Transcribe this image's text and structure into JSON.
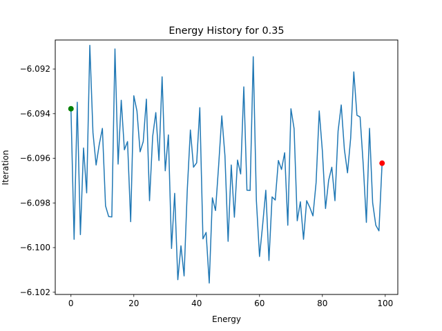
{
  "chart_data": {
    "type": "line",
    "title": "Energy History for 0.35",
    "xlabel": "Energy",
    "ylabel": "Iteration",
    "xlim": [
      -5,
      104
    ],
    "ylim": [
      -6.1021,
      -6.0907
    ],
    "grid": false,
    "x_ticks": [
      0,
      20,
      40,
      60,
      80,
      100
    ],
    "y_ticks": [
      -6.102,
      -6.1,
      -6.098,
      -6.096,
      -6.094,
      -6.092
    ],
    "x_tick_labels": [
      "0",
      "20",
      "40",
      "60",
      "80",
      "100"
    ],
    "y_tick_labels": [
      "−6.102",
      "−6.100",
      "−6.098",
      "−6.096",
      "−6.094",
      "−6.092"
    ],
    "line_color": "#1f77b4",
    "series": [
      {
        "values": [
          -6.09378,
          -6.09963,
          -6.09349,
          -6.09942,
          -6.09554,
          -6.09755,
          -6.09094,
          -6.09485,
          -6.0963,
          -6.09538,
          -6.09466,
          -6.09813,
          -6.09861,
          -6.09863,
          -6.0911,
          -6.09626,
          -6.0934,
          -6.09562,
          -6.09525,
          -6.09884,
          -6.0932,
          -6.09388,
          -6.09571,
          -6.09525,
          -6.09335,
          -6.0979,
          -6.09502,
          -6.09395,
          -6.0961,
          -6.09235,
          -6.09656,
          -6.09495,
          -6.10004,
          -6.09757,
          -6.10144,
          -6.09992,
          -6.10127,
          -6.09745,
          -6.09473,
          -6.0964,
          -6.0962,
          -6.09373,
          -6.09961,
          -6.09932,
          -6.10159,
          -6.09777,
          -6.09834,
          -6.09631,
          -6.0941,
          -6.09589,
          -6.09972,
          -6.0963,
          -6.09864,
          -6.09608,
          -6.0967,
          -6.0928,
          -6.09743,
          -6.09744,
          -6.09145,
          -6.09789,
          -6.1004,
          -6.09898,
          -6.09743,
          -6.10058,
          -6.09773,
          -6.09787,
          -6.0961,
          -6.0965,
          -6.09575,
          -6.099,
          -6.09378,
          -6.09467,
          -6.0988,
          -6.09795,
          -6.09963,
          -6.0979,
          -6.0982,
          -6.09858,
          -6.09709,
          -6.09388,
          -6.09568,
          -6.09825,
          -6.09698,
          -6.0964,
          -6.0979,
          -6.09478,
          -6.09361,
          -6.0956,
          -6.09665,
          -6.0951,
          -6.09213,
          -6.09407,
          -6.09415,
          -6.09628,
          -6.09887,
          -6.09466,
          -6.098,
          -6.099,
          -6.09925,
          -6.09622
        ]
      }
    ],
    "markers": [
      {
        "x": 0,
        "y": -6.09378,
        "color": "#008000"
      },
      {
        "x": 99,
        "y": -6.09622,
        "color": "#ff0000"
      }
    ]
  }
}
